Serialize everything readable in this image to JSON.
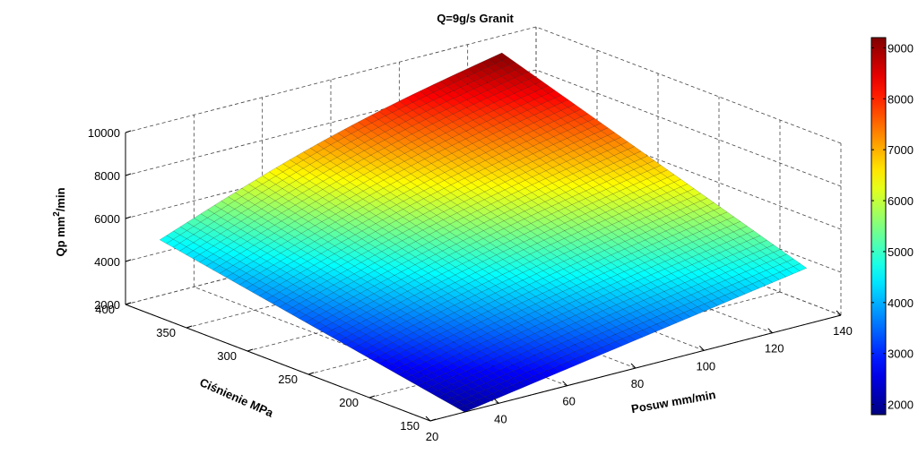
{
  "chart_data": {
    "type": "surface",
    "title": "Q=9g/s Granit",
    "xlabel": "Posuw mm/min",
    "ylabel": "Ciśnienie MPa",
    "zlabel": "Qp mm",
    "zlabel_sup": "2",
    "zlabel_tail": "/min",
    "x_ticks": [
      "20",
      "40",
      "60",
      "80",
      "100",
      "120",
      "140"
    ],
    "y_ticks": [
      "150",
      "200",
      "250",
      "300",
      "350",
      "400"
    ],
    "z_ticks": [
      "2000",
      "4000",
      "6000",
      "8000",
      "10000"
    ],
    "xlim": [
      20,
      140
    ],
    "ylim": [
      150,
      400
    ],
    "zlim": [
      2000,
      10000
    ],
    "x_range": [
      30,
      130
    ],
    "y_range": [
      150,
      400
    ],
    "corner_values": {
      "x30_y150": 2000,
      "x130_y150": 4600,
      "x30_y400": 4600,
      "x130_y400": 9200
    },
    "colorbar": {
      "ticks": [
        "2000",
        "3000",
        "4000",
        "5000",
        "6000",
        "7000",
        "8000",
        "9000"
      ],
      "range": [
        1800,
        9200
      ],
      "colormap": "jet"
    },
    "grid": true
  }
}
